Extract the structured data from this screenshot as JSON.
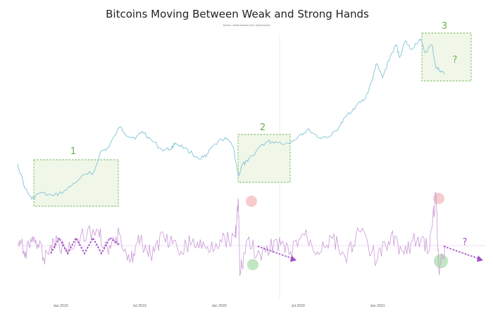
{
  "chart_data": {
    "type": "line",
    "title": "Bitcoins Moving Between Weak and Strong Hands",
    "source": "Source: charts.woobull.com / @woonomic",
    "x_ticks": [
      "Jan 2019",
      "Jul 2019",
      "Jan 2020",
      "Jul 2020",
      "Jan 2021"
    ],
    "series": [
      {
        "role": "price",
        "color": "#7fc3d6",
        "points": [
          [
            "2018-11-14",
            6300
          ],
          [
            "2018-12-01",
            4000
          ],
          [
            "2018-12-15",
            3300
          ],
          [
            "2019-01-01",
            3700
          ],
          [
            "2019-02-01",
            3500
          ],
          [
            "2019-03-01",
            3900
          ],
          [
            "2019-04-01",
            4900
          ],
          [
            "2019-05-01",
            5500
          ],
          [
            "2019-05-15",
            7900
          ],
          [
            "2019-06-01",
            8500
          ],
          [
            "2019-06-26",
            12500
          ],
          [
            "2019-07-15",
            10500
          ],
          [
            "2019-08-01",
            10300
          ],
          [
            "2019-08-15",
            11500
          ],
          [
            "2019-09-01",
            10000
          ],
          [
            "2019-09-26",
            8200
          ],
          [
            "2019-10-15",
            8300
          ],
          [
            "2019-10-26",
            9300
          ],
          [
            "2019-11-15",
            8500
          ],
          [
            "2019-12-15",
            7000
          ],
          [
            "2020-01-01",
            7200
          ],
          [
            "2020-01-15",
            8700
          ],
          [
            "2020-02-12",
            10300
          ],
          [
            "2020-03-01",
            8600
          ],
          [
            "2020-03-12",
            5000
          ],
          [
            "2020-03-20",
            6200
          ],
          [
            "2020-04-01",
            6600
          ],
          [
            "2020-04-29",
            8800
          ],
          [
            "2020-05-15",
            9500
          ],
          [
            "2020-06-01",
            9500
          ],
          [
            "2020-07-01",
            9200
          ],
          [
            "2020-07-27",
            11000
          ],
          [
            "2020-08-15",
            11800
          ],
          [
            "2020-09-05",
            10200
          ],
          [
            "2020-10-01",
            10600
          ],
          [
            "2020-10-21",
            12800
          ],
          [
            "2020-11-05",
            15500
          ],
          [
            "2020-11-25",
            18500
          ],
          [
            "2020-12-15",
            21000
          ],
          [
            "2021-01-02",
            32000
          ],
          [
            "2021-01-08",
            40000
          ],
          [
            "2021-01-22",
            31000
          ],
          [
            "2021-02-08",
            46000
          ],
          [
            "2021-02-21",
            57000
          ],
          [
            "2021-02-28",
            45000
          ],
          [
            "2021-03-13",
            61000
          ],
          [
            "2021-03-25",
            52000
          ],
          [
            "2021-04-14",
            63500
          ],
          [
            "2021-04-25",
            49000
          ],
          [
            "2021-05-10",
            57000
          ],
          [
            "2021-05-19",
            37000
          ],
          [
            "2021-05-30",
            35000
          ],
          [
            "2021-06-08",
            33000
          ]
        ]
      },
      {
        "role": "weak-to-strong-hands-oscillator",
        "color": "#c99ad6",
        "points": [
          [
            "2018-11-14",
            0.1
          ],
          [
            "2018-12-01",
            -0.2
          ],
          [
            "2018-12-20",
            0.3
          ],
          [
            "2019-01-10",
            -0.4
          ],
          [
            "2019-02-01",
            0.2
          ],
          [
            "2019-03-01",
            -0.1
          ],
          [
            "2019-04-01",
            0.3
          ],
          [
            "2019-05-10",
            0.5
          ],
          [
            "2019-06-01",
            -0.3
          ],
          [
            "2019-06-25",
            0.4
          ],
          [
            "2019-07-20",
            -0.5
          ],
          [
            "2019-08-10",
            0.2
          ],
          [
            "2019-09-01",
            -0.3
          ],
          [
            "2019-10-01",
            0.3
          ],
          [
            "2019-11-01",
            -0.2
          ],
          [
            "2019-12-01",
            0.1
          ],
          [
            "2020-01-01",
            -0.1
          ],
          [
            "2020-02-01",
            0.2
          ],
          [
            "2020-03-05",
            0.3
          ],
          [
            "2020-03-12",
            1.5
          ],
          [
            "2020-03-15",
            -1.0
          ],
          [
            "2020-04-01",
            0.2
          ],
          [
            "2020-05-01",
            -0.5
          ],
          [
            "2020-06-01",
            0.2
          ],
          [
            "2020-07-01",
            -0.3
          ],
          [
            "2020-08-01",
            0.4
          ],
          [
            "2020-09-01",
            -0.2
          ],
          [
            "2020-10-01",
            0.3
          ],
          [
            "2020-11-01",
            -0.4
          ],
          [
            "2020-12-01",
            0.5
          ],
          [
            "2021-01-10",
            -0.5
          ],
          [
            "2021-02-10",
            0.4
          ],
          [
            "2021-03-10",
            -0.3
          ],
          [
            "2021-04-10",
            0.3
          ],
          [
            "2021-05-05",
            -0.1
          ],
          [
            "2021-05-19",
            1.8
          ],
          [
            "2021-05-25",
            -0.8
          ],
          [
            "2021-06-08",
            0.0
          ]
        ]
      }
    ],
    "annotations": {
      "box_labels": [
        "1",
        "2",
        "3"
      ],
      "question_labels": [
        "?",
        "?"
      ],
      "box_color": "#6ab04c",
      "arrow_color": "#a24fc2",
      "high_marker_color": "#f2aaaa",
      "low_marker_color": "#9ad49a"
    },
    "legend": "none",
    "grid": false
  }
}
